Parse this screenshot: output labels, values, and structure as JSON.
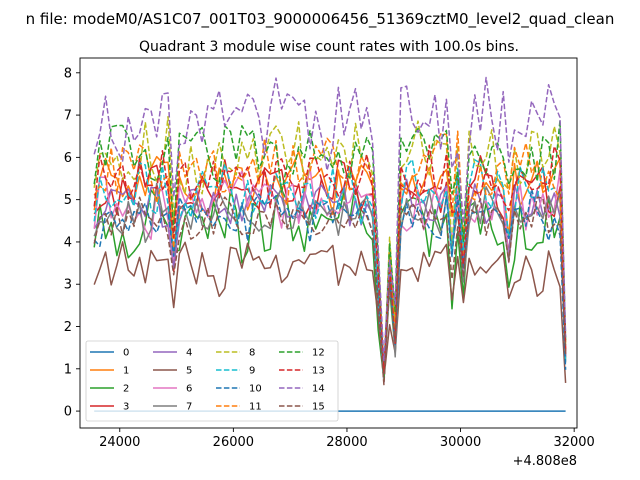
{
  "chart_data": {
    "type": "line",
    "suptitle": "n file: modeM0/AS1C07_001T03_9000006456_51369cztM0_level2_quad_clean",
    "title": "Quadrant 3 module wise count rates with 100.0s bins.",
    "xlabel": "",
    "ylabel": "",
    "x_offset_label": "+4.808e8",
    "xlim": [
      23300,
      32050
    ],
    "ylim": [
      -0.4,
      8.35
    ],
    "xticks": [
      24000,
      26000,
      28000,
      30000,
      32000
    ],
    "xtick_labels": [
      "24000",
      "26000",
      "28000",
      "30000",
      "32000"
    ],
    "yticks": [
      0,
      1,
      2,
      3,
      4,
      5,
      6,
      7,
      8
    ],
    "ytick_labels": [
      "0",
      "1",
      "2",
      "3",
      "4",
      "5",
      "6",
      "7",
      "8"
    ],
    "x_start": 23550,
    "x_step": 100,
    "n_points": 84,
    "legend_position": "lower-left",
    "legend_columns": 4,
    "series": [
      {
        "name": "0",
        "style": "solid",
        "color": "#1f77b4",
        "base": 0.0,
        "amp": 0.0
      },
      {
        "name": "1",
        "style": "solid",
        "color": "#ff7f0e",
        "base": 5.4,
        "amp": 0.55
      },
      {
        "name": "2",
        "style": "solid",
        "color": "#2ca02c",
        "base": 4.4,
        "amp": 0.75
      },
      {
        "name": "3",
        "style": "solid",
        "color": "#d62728",
        "base": 5.3,
        "amp": 0.6
      },
      {
        "name": "4",
        "style": "solid",
        "color": "#9467bd",
        "base": 4.9,
        "amp": 0.45
      },
      {
        "name": "5",
        "style": "solid",
        "color": "#8c564b",
        "base": 3.4,
        "amp": 0.5
      },
      {
        "name": "6",
        "style": "solid",
        "color": "#e377c2",
        "base": 4.9,
        "amp": 0.55
      },
      {
        "name": "7",
        "style": "solid",
        "color": "#7f7f7f",
        "base": 4.7,
        "amp": 0.5
      },
      {
        "name": "8",
        "style": "dashed",
        "color": "#bcbd22",
        "base": 6.0,
        "amp": 0.7
      },
      {
        "name": "9",
        "style": "dashed",
        "color": "#17becf",
        "base": 5.1,
        "amp": 0.6
      },
      {
        "name": "10",
        "style": "dashed",
        "color": "#1f77b4",
        "base": 4.6,
        "amp": 0.5
      },
      {
        "name": "11",
        "style": "dashed",
        "color": "#ff7f0e",
        "base": 5.8,
        "amp": 0.65
      },
      {
        "name": "12",
        "style": "dashed",
        "color": "#2ca02c",
        "base": 6.1,
        "amp": 0.65
      },
      {
        "name": "13",
        "style": "dashed",
        "color": "#d62728",
        "base": 5.5,
        "amp": 0.6
      },
      {
        "name": "14",
        "style": "dashed",
        "color": "#9467bd",
        "base": 6.9,
        "amp": 0.8
      },
      {
        "name": "15",
        "style": "dashed",
        "color": "#8c564b",
        "base": 4.5,
        "amp": 0.4
      }
    ],
    "dips": [
      {
        "x": 24950,
        "factor": 0.72
      },
      {
        "x": 28550,
        "factor": 0.55
      },
      {
        "x": 28650,
        "factor": 0.16
      },
      {
        "x": 28750,
        "factor": 0.65
      },
      {
        "x": 28850,
        "factor": 0.35
      },
      {
        "x": 29850,
        "factor": 0.78
      },
      {
        "x": 30050,
        "factor": 0.68
      },
      {
        "x": 30850,
        "factor": 0.8
      },
      {
        "x": 31850,
        "factor": 0.25
      }
    ]
  }
}
